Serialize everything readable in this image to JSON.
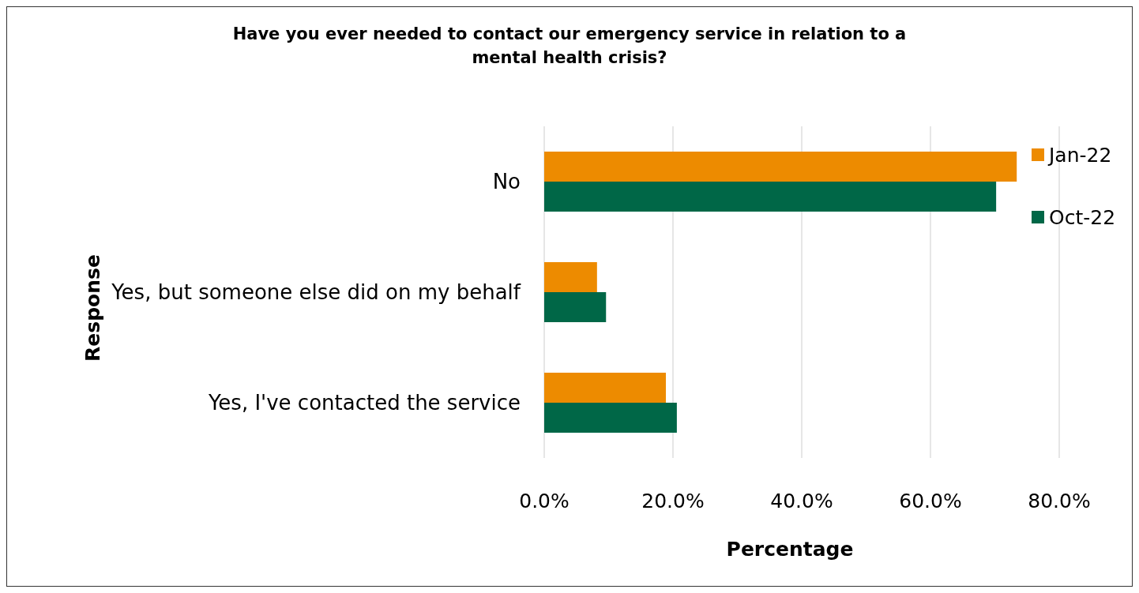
{
  "chart_data": {
    "type": "bar",
    "orientation": "horizontal",
    "title": "Have you ever needed to contact our emergency service in relation to a mental health crisis?",
    "xlabel": "Percentage",
    "ylabel": "Response",
    "categories": [
      "No",
      "Yes, but someone else did on my behalf",
      "Yes, I've contacted the service"
    ],
    "series": [
      {
        "name": "Jan-22",
        "color": "#ed8b00",
        "values": [
          73.4,
          8.2,
          18.9
        ]
      },
      {
        "name": "Oct-22",
        "color": "#006747",
        "values": [
          70.2,
          9.6,
          20.6
        ]
      }
    ],
    "xlim": [
      0,
      80
    ],
    "xticks": [
      {
        "value": 0,
        "label": "0.0%"
      },
      {
        "value": 20,
        "label": "20.0%"
      },
      {
        "value": 40,
        "label": "40.0%"
      },
      {
        "value": 60,
        "label": "60.0%"
      },
      {
        "value": 80,
        "label": "80.0%"
      }
    ],
    "grid": "x",
    "legend": "top right"
  }
}
